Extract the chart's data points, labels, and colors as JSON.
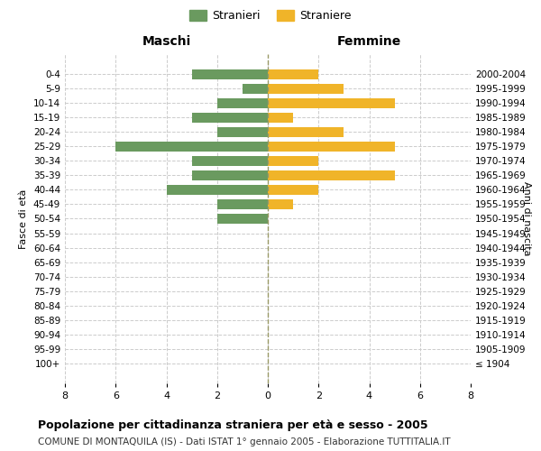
{
  "age_groups": [
    "100+",
    "95-99",
    "90-94",
    "85-89",
    "80-84",
    "75-79",
    "70-74",
    "65-69",
    "60-64",
    "55-59",
    "50-54",
    "45-49",
    "40-44",
    "35-39",
    "30-34",
    "25-29",
    "20-24",
    "15-19",
    "10-14",
    "5-9",
    "0-4"
  ],
  "birth_years": [
    "≤ 1904",
    "1905-1909",
    "1910-1914",
    "1915-1919",
    "1920-1924",
    "1925-1929",
    "1930-1934",
    "1935-1939",
    "1940-1944",
    "1945-1949",
    "1950-1954",
    "1955-1959",
    "1960-1964",
    "1965-1969",
    "1970-1974",
    "1975-1979",
    "1980-1984",
    "1985-1989",
    "1990-1994",
    "1995-1999",
    "2000-2004"
  ],
  "maschi": [
    0,
    0,
    0,
    0,
    0,
    0,
    0,
    0,
    0,
    0,
    2,
    2,
    4,
    3,
    3,
    6,
    2,
    3,
    2,
    1,
    3
  ],
  "femmine": [
    0,
    0,
    0,
    0,
    0,
    0,
    0,
    0,
    0,
    0,
    0,
    1,
    2,
    5,
    2,
    5,
    3,
    1,
    5,
    3,
    2
  ],
  "maschi_color": "#6a9a5f",
  "femmine_color": "#f0b429",
  "title": "Popolazione per cittadinanza straniera per età e sesso - 2005",
  "subtitle": "COMUNE DI MONTAQUILA (IS) - Dati ISTAT 1° gennaio 2005 - Elaborazione TUTTITALIA.IT",
  "ylabel_left": "Fasce di età",
  "ylabel_right": "Anni di nascita",
  "xlabel_left": "Maschi",
  "xlabel_right": "Femmine",
  "legend_stranieri": "Stranieri",
  "legend_straniere": "Straniere",
  "xlim": 8,
  "background_color": "#ffffff",
  "grid_color": "#cccccc"
}
